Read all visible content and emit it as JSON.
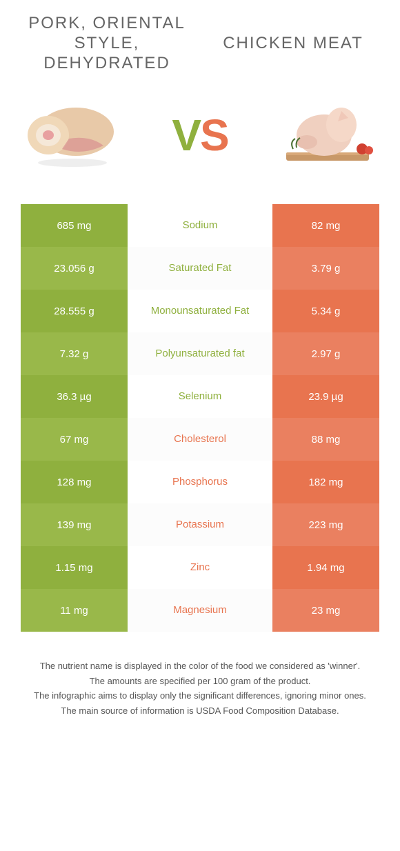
{
  "colors": {
    "pork": "#8fb03e",
    "chicken": "#e8744f",
    "pork_alt": "#99b84a",
    "chicken_alt": "#ea8060",
    "text": "#555555"
  },
  "header": {
    "left_title": "PORK, ORIENTAL STYLE, DEHYDRATED",
    "right_title": "CHICKEN MEAT",
    "vs_v": "V",
    "vs_s": "S"
  },
  "rows": [
    {
      "left": "685 mg",
      "label": "Sodium",
      "right": "82 mg",
      "winner": "pork"
    },
    {
      "left": "23.056 g",
      "label": "Saturated Fat",
      "right": "3.79 g",
      "winner": "pork"
    },
    {
      "left": "28.555 g",
      "label": "Monounsaturated Fat",
      "right": "5.34 g",
      "winner": "pork"
    },
    {
      "left": "7.32 g",
      "label": "Polyunsaturated fat",
      "right": "2.97 g",
      "winner": "pork"
    },
    {
      "left": "36.3 µg",
      "label": "Selenium",
      "right": "23.9 µg",
      "winner": "pork"
    },
    {
      "left": "67 mg",
      "label": "Cholesterol",
      "right": "88 mg",
      "winner": "chicken"
    },
    {
      "left": "128 mg",
      "label": "Phosphorus",
      "right": "182 mg",
      "winner": "chicken"
    },
    {
      "left": "139 mg",
      "label": "Potassium",
      "right": "223 mg",
      "winner": "chicken"
    },
    {
      "left": "1.15 mg",
      "label": "Zinc",
      "right": "1.94 mg",
      "winner": "chicken"
    },
    {
      "left": "11 mg",
      "label": "Magnesium",
      "right": "23 mg",
      "winner": "chicken"
    }
  ],
  "footer": {
    "line1": "The nutrient name is displayed in the color of the food we considered as 'winner'.",
    "line2": "The amounts are specified per 100 gram of the product.",
    "line3": "The infographic aims to display only the significant differences, ignoring minor ones.",
    "line4": "The main source of information is USDA Food Composition Database."
  }
}
